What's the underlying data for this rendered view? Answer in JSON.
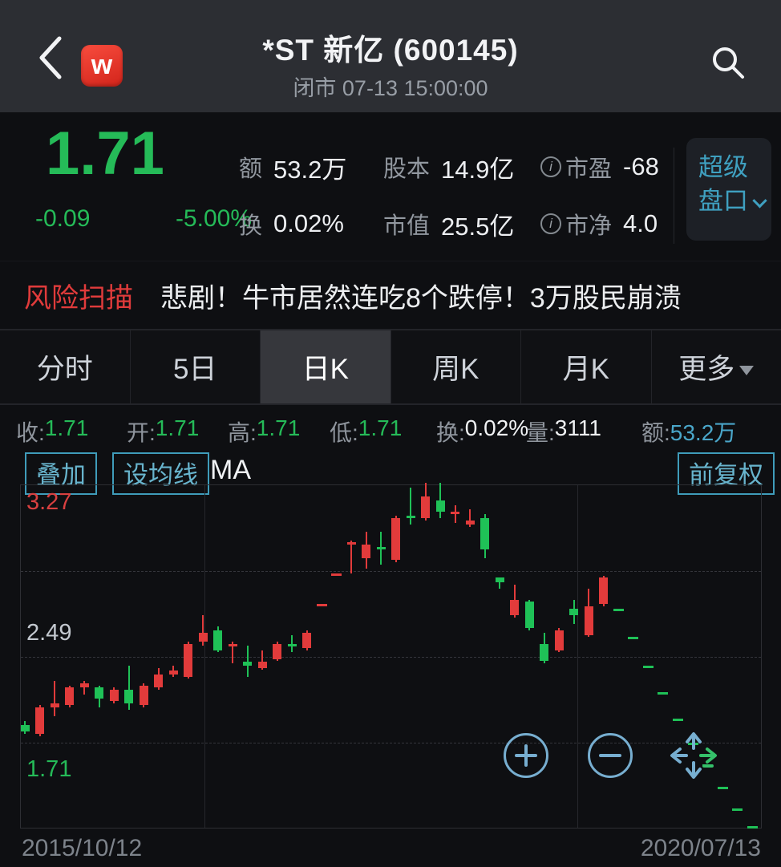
{
  "colors": {
    "green": "#25bb58",
    "red": "#e23b3b",
    "teal": "#4aa6c9",
    "teal_border": "#3f9cba",
    "header_bg": "#2c2e33",
    "page_bg": "#0e0f12",
    "active_tab_bg": "#36373c",
    "panel_bg": "#1d2026"
  },
  "header": {
    "app_badge": "w",
    "title": "*ST 新亿 (600145)",
    "subtitle": "闭市 07-13 15:00:00"
  },
  "quote": {
    "price": "1.71",
    "change": "-0.09",
    "change_pct": "-5.00%",
    "stats": [
      {
        "label": "额",
        "value": "53.2万",
        "info": false
      },
      {
        "label": "股本",
        "value": "14.9亿",
        "info": false
      },
      {
        "label": "市盈",
        "value": "-68",
        "info": true
      },
      {
        "label": "换",
        "value": "0.02%",
        "info": false
      },
      {
        "label": "市值",
        "value": "25.5亿",
        "info": false
      },
      {
        "label": "市净",
        "value": "4.0",
        "info": true
      }
    ],
    "panel_button": {
      "line1": "超级",
      "line2": "盘口"
    }
  },
  "risk_banner": {
    "tag": "风险扫描",
    "headline": "悲剧！牛市居然连吃8个跌停！3万股民崩溃"
  },
  "tabs": [
    {
      "label": "分时",
      "active": false,
      "caret": false
    },
    {
      "label": "5日",
      "active": false,
      "caret": false
    },
    {
      "label": "日K",
      "active": true,
      "caret": false
    },
    {
      "label": "周K",
      "active": false,
      "caret": false
    },
    {
      "label": "月K",
      "active": false,
      "caret": false
    },
    {
      "label": "更多",
      "active": false,
      "caret": true
    }
  ],
  "ohlc_bar": [
    {
      "label": "收:",
      "value": "1.71",
      "color": "green"
    },
    {
      "label": "开:",
      "value": "1.71",
      "color": "green"
    },
    {
      "label": "高:",
      "value": "1.71",
      "color": "green"
    },
    {
      "label": "低:",
      "value": "1.71",
      "color": "green"
    },
    {
      "label": "换:",
      "value": "0.02%",
      "color": "white"
    },
    {
      "label": "量:",
      "value": "3111",
      "color": "white"
    },
    {
      "label": "额:",
      "value": "53.2万",
      "color": "teal"
    }
  ],
  "chart_toolbar": {
    "overlay": "叠加",
    "set_ma": "设均线",
    "ma_label": "MA",
    "adjust": "前复权"
  },
  "chart_data": {
    "type": "candlestick",
    "period": "日K",
    "adjustment": "前复权",
    "x_start": "2015/10/12",
    "x_end": "2020/07/13",
    "ylim": [
      1.71,
      3.27
    ],
    "y_ticks": [
      "3.27",
      "2.49",
      "1.71"
    ],
    "up_color": "#e23b3b",
    "down_color": "#1fc157",
    "grid": true,
    "candles_ohlc": [
      [
        2.18,
        2.2,
        2.14,
        2.15
      ],
      [
        2.14,
        2.27,
        2.13,
        2.26
      ],
      [
        2.26,
        2.38,
        2.22,
        2.28
      ],
      [
        2.27,
        2.36,
        2.26,
        2.35
      ],
      [
        2.35,
        2.38,
        2.32,
        2.37
      ],
      [
        2.35,
        2.36,
        2.26,
        2.3
      ],
      [
        2.29,
        2.35,
        2.28,
        2.34
      ],
      [
        2.34,
        2.45,
        2.25,
        2.28
      ],
      [
        2.27,
        2.37,
        2.26,
        2.36
      ],
      [
        2.35,
        2.44,
        2.34,
        2.41
      ],
      [
        2.41,
        2.45,
        2.4,
        2.43
      ],
      [
        2.4,
        2.56,
        2.39,
        2.55
      ],
      [
        2.56,
        2.68,
        2.54,
        2.6
      ],
      [
        2.61,
        2.63,
        2.51,
        2.52
      ],
      [
        2.54,
        2.56,
        2.46,
        2.55
      ],
      [
        2.47,
        2.54,
        2.4,
        2.45
      ],
      [
        2.44,
        2.52,
        2.43,
        2.47
      ],
      [
        2.48,
        2.56,
        2.47,
        2.55
      ],
      [
        2.55,
        2.59,
        2.51,
        2.54
      ],
      [
        2.53,
        2.61,
        2.52,
        2.6
      ],
      [
        2.73,
        2.73,
        2.73,
        2.73
      ],
      [
        2.87,
        2.87,
        2.87,
        2.87
      ],
      [
        3.01,
        3.02,
        2.87,
        3.01
      ],
      [
        2.94,
        3.06,
        2.89,
        3.0
      ],
      [
        2.99,
        3.06,
        2.91,
        2.98
      ],
      [
        2.93,
        3.13,
        2.92,
        3.12
      ],
      [
        3.13,
        3.26,
        3.09,
        3.12
      ],
      [
        3.12,
        3.28,
        3.11,
        3.22
      ],
      [
        3.2,
        3.28,
        3.12,
        3.15
      ],
      [
        3.14,
        3.18,
        3.1,
        3.15
      ],
      [
        3.09,
        3.16,
        3.08,
        3.11
      ],
      [
        3.12,
        3.14,
        2.94,
        2.98
      ],
      [
        2.85,
        2.85,
        2.8,
        2.83
      ],
      [
        2.68,
        2.82,
        2.67,
        2.75
      ],
      [
        2.74,
        2.75,
        2.61,
        2.62
      ],
      [
        2.55,
        2.6,
        2.46,
        2.47
      ],
      [
        2.52,
        2.62,
        2.51,
        2.61
      ],
      [
        2.71,
        2.75,
        2.64,
        2.68
      ],
      [
        2.59,
        2.8,
        2.58,
        2.72
      ],
      [
        2.73,
        2.86,
        2.72,
        2.85
      ],
      [
        2.71,
        2.71,
        2.71,
        2.71
      ],
      [
        2.58,
        2.58,
        2.58,
        2.58
      ],
      [
        2.45,
        2.45,
        2.45,
        2.45
      ],
      [
        2.33,
        2.33,
        2.33,
        2.33
      ],
      [
        2.21,
        2.21,
        2.21,
        2.21
      ],
      [
        2.1,
        2.1,
        2.1,
        2.1
      ],
      [
        2.0,
        2.0,
        2.0,
        2.0
      ],
      [
        1.9,
        1.9,
        1.9,
        1.9
      ],
      [
        1.8,
        1.8,
        1.8,
        1.8
      ],
      [
        1.71,
        1.71,
        1.71,
        1.71
      ]
    ]
  }
}
